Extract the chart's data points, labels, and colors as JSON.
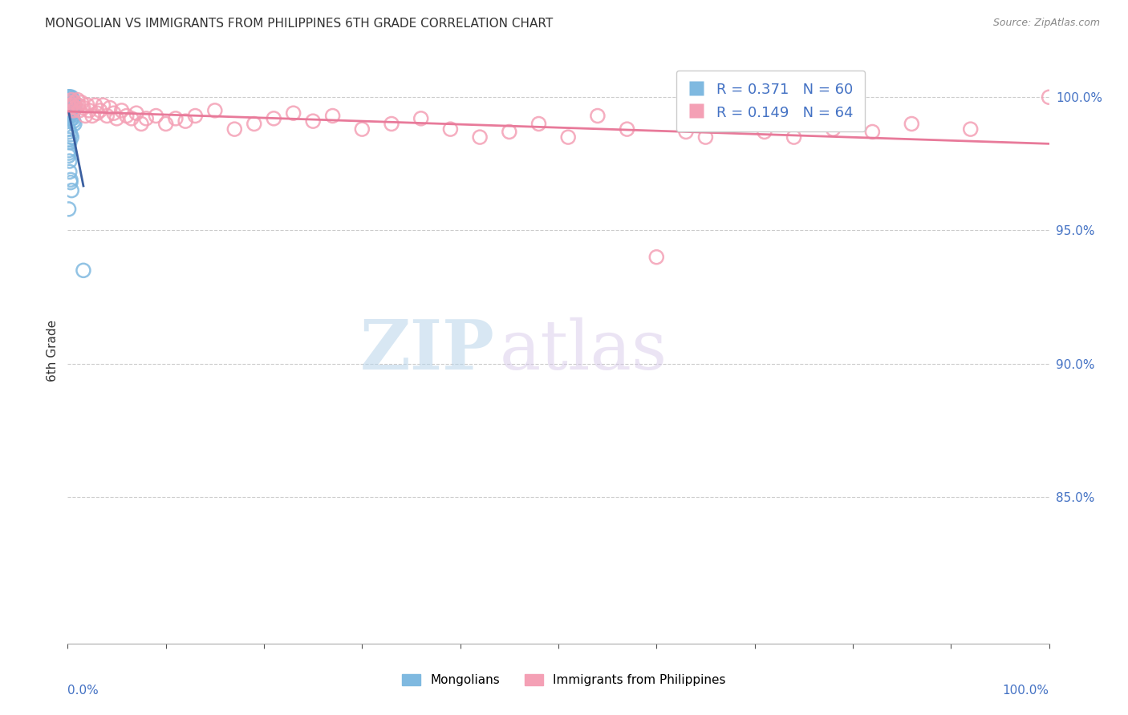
{
  "title": "MONGOLIAN VS IMMIGRANTS FROM PHILIPPINES 6TH GRADE CORRELATION CHART",
  "source": "Source: ZipAtlas.com",
  "ylabel": "6th Grade",
  "legend_label1": "Mongolians",
  "legend_label2": "Immigrants from Philippines",
  "R1": 0.371,
  "N1": 60,
  "R2": 0.149,
  "N2": 64,
  "color1": "#7fb9e0",
  "color2": "#f4a0b5",
  "trendline1_color": "#3a5fa0",
  "trendline2_color": "#e87a9a",
  "ytick_values": [
    0.85,
    0.9,
    0.95,
    1.0
  ],
  "ylim": [
    0.795,
    1.015
  ],
  "xlim": [
    0.0,
    1.0
  ],
  "right_axis_color": "#4472c4",
  "watermark_zip": "ZIP",
  "watermark_atlas": "atlas",
  "mongo_x": [
    0.001,
    0.001,
    0.001,
    0.001,
    0.001,
    0.001,
    0.001,
    0.001,
    0.002,
    0.002,
    0.002,
    0.002,
    0.002,
    0.002,
    0.002,
    0.003,
    0.003,
    0.003,
    0.003,
    0.003,
    0.004,
    0.004,
    0.004,
    0.004,
    0.005,
    0.005,
    0.005,
    0.006,
    0.006,
    0.007,
    0.001,
    0.001,
    0.001,
    0.002,
    0.002,
    0.002,
    0.003,
    0.003,
    0.004,
    0.004,
    0.005,
    0.005,
    0.006,
    0.007,
    0.001,
    0.002,
    0.003,
    0.004,
    0.001,
    0.002,
    0.001,
    0.001,
    0.001,
    0.002,
    0.002,
    0.003,
    0.003,
    0.004,
    0.016,
    0.001
  ],
  "mongo_y": [
    1.0,
    1.0,
    1.0,
    1.0,
    0.999,
    0.999,
    0.999,
    0.998,
    1.0,
    1.0,
    0.999,
    0.999,
    0.998,
    0.997,
    0.996,
    1.0,
    0.999,
    0.998,
    0.997,
    0.996,
    1.0,
    0.999,
    0.998,
    0.997,
    0.999,
    0.998,
    0.997,
    0.998,
    0.997,
    0.997,
    0.995,
    0.994,
    0.993,
    0.995,
    0.994,
    0.993,
    0.995,
    0.993,
    0.994,
    0.992,
    0.993,
    0.992,
    0.991,
    0.99,
    0.988,
    0.987,
    0.986,
    0.985,
    0.984,
    0.983,
    0.98,
    0.979,
    0.978,
    0.976,
    0.972,
    0.969,
    0.968,
    0.965,
    0.935,
    0.958
  ],
  "phil_x": [
    0.001,
    0.002,
    0.003,
    0.004,
    0.005,
    0.006,
    0.007,
    0.008,
    0.01,
    0.011,
    0.012,
    0.014,
    0.016,
    0.018,
    0.02,
    0.022,
    0.025,
    0.028,
    0.03,
    0.033,
    0.036,
    0.04,
    0.043,
    0.047,
    0.05,
    0.055,
    0.06,
    0.065,
    0.07,
    0.075,
    0.08,
    0.09,
    0.1,
    0.11,
    0.12,
    0.13,
    0.15,
    0.17,
    0.19,
    0.21,
    0.23,
    0.25,
    0.27,
    0.3,
    0.33,
    0.36,
    0.39,
    0.42,
    0.45,
    0.48,
    0.51,
    0.54,
    0.57,
    0.6,
    0.63,
    0.65,
    0.68,
    0.71,
    0.74,
    0.78,
    0.82,
    0.86,
    0.92,
    1.0
  ],
  "phil_y": [
    0.997,
    0.998,
    0.996,
    0.999,
    0.997,
    0.995,
    0.998,
    0.996,
    0.999,
    0.997,
    0.995,
    0.998,
    0.996,
    0.993,
    0.997,
    0.995,
    0.993,
    0.997,
    0.994,
    0.995,
    0.997,
    0.993,
    0.996,
    0.994,
    0.992,
    0.995,
    0.993,
    0.992,
    0.994,
    0.99,
    0.992,
    0.993,
    0.99,
    0.992,
    0.991,
    0.993,
    0.995,
    0.988,
    0.99,
    0.992,
    0.994,
    0.991,
    0.993,
    0.988,
    0.99,
    0.992,
    0.988,
    0.985,
    0.987,
    0.99,
    0.985,
    0.993,
    0.988,
    0.94,
    0.987,
    0.985,
    0.99,
    0.987,
    0.985,
    0.988,
    0.987,
    0.99,
    0.988,
    1.0
  ]
}
